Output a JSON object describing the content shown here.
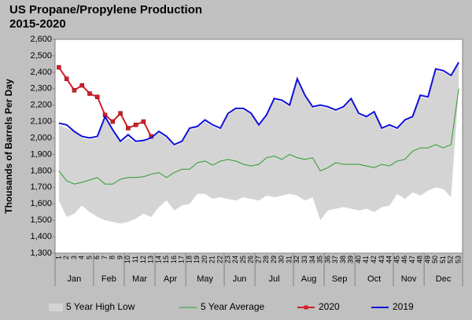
{
  "chart_data": {
    "type": "line",
    "title": "US Propane/Propylene Production",
    "subtitle": "2015-2020",
    "y_label": "Thousands of Barrels Per Day",
    "categories": [
      1,
      2,
      3,
      4,
      5,
      6,
      7,
      8,
      9,
      10,
      11,
      12,
      13,
      14,
      15,
      16,
      17,
      18,
      19,
      20,
      21,
      22,
      23,
      24,
      25,
      26,
      27,
      28,
      29,
      30,
      31,
      32,
      33,
      34,
      35,
      36,
      37,
      38,
      39,
      40,
      41,
      42,
      43,
      44,
      45,
      46,
      47,
      48,
      49,
      50,
      51,
      52,
      53
    ],
    "months": [
      {
        "label": "Jan",
        "start_week": 1
      },
      {
        "label": "Feb",
        "start_week": 6
      },
      {
        "label": "Mar",
        "start_week": 10
      },
      {
        "label": "Apr",
        "start_week": 14
      },
      {
        "label": "May",
        "start_week": 18
      },
      {
        "label": "Jun",
        "start_week": 23
      },
      {
        "label": "Jul",
        "start_week": 27
      },
      {
        "label": "Aug",
        "start_week": 32
      },
      {
        "label": "Sep",
        "start_week": 36
      },
      {
        "label": "Oct",
        "start_week": 40
      },
      {
        "label": "Nov",
        "start_week": 45
      },
      {
        "label": "Dec",
        "start_week": 49
      }
    ],
    "ylim": [
      1300,
      2600
    ],
    "yticks": [
      {
        "value": 1300,
        "label": "1,300"
      },
      {
        "value": 1400,
        "label": "1,400"
      },
      {
        "value": 1500,
        "label": "1,500"
      },
      {
        "value": 1600,
        "label": "1,600"
      },
      {
        "value": 1700,
        "label": "1,700"
      },
      {
        "value": 1800,
        "label": "1,800"
      },
      {
        "value": 1900,
        "label": "1,900"
      },
      {
        "value": 2000,
        "label": "2,000"
      },
      {
        "value": 2100,
        "label": "2,100"
      },
      {
        "value": 2200,
        "label": "2,200"
      },
      {
        "value": 2300,
        "label": "2,300"
      },
      {
        "value": 2400,
        "label": "2,400"
      },
      {
        "value": 2500,
        "label": "2,500"
      },
      {
        "value": 2600,
        "label": "2,600"
      }
    ],
    "grid": false,
    "legend": "bottom",
    "band": {
      "name": "5 Year High Low",
      "color": "#d4d4d4",
      "high": [
        2080,
        2060,
        2040,
        2000,
        1990,
        2000,
        2120,
        2040,
        1970,
        2000,
        1970,
        1980,
        1990,
        2030,
        2000,
        1950,
        1970,
        2050,
        2060,
        2100,
        2070,
        2050,
        2140,
        2170,
        2170,
        2140,
        2070,
        2130,
        2230,
        2220,
        2190,
        2350,
        2250,
        2180,
        2190,
        2180,
        2160,
        2180,
        2230,
        2140,
        2120,
        2150,
        2050,
        2070,
        2050,
        2100,
        2120,
        2250,
        2240,
        2410,
        2400,
        2370,
        2450
      ],
      "low": [
        1620,
        1520,
        1540,
        1590,
        1550,
        1520,
        1500,
        1490,
        1480,
        1490,
        1510,
        1540,
        1520,
        1580,
        1620,
        1560,
        1590,
        1600,
        1660,
        1660,
        1630,
        1640,
        1630,
        1620,
        1640,
        1630,
        1620,
        1650,
        1640,
        1650,
        1660,
        1650,
        1620,
        1640,
        1500,
        1560,
        1570,
        1580,
        1570,
        1560,
        1570,
        1550,
        1580,
        1590,
        1660,
        1630,
        1670,
        1650,
        1680,
        1700,
        1690,
        1640,
        2300
      ]
    },
    "series": [
      {
        "name": "5 Year Average",
        "color": "#2e9a2e",
        "width": 1,
        "marker": false,
        "values": [
          1800,
          1740,
          1720,
          1730,
          1745,
          1760,
          1720,
          1720,
          1750,
          1760,
          1760,
          1765,
          1780,
          1790,
          1760,
          1790,
          1810,
          1810,
          1850,
          1860,
          1835,
          1860,
          1870,
          1860,
          1840,
          1830,
          1840,
          1880,
          1890,
          1870,
          1900,
          1880,
          1870,
          1880,
          1800,
          1820,
          1850,
          1840,
          1840,
          1840,
          1830,
          1820,
          1840,
          1830,
          1860,
          1870,
          1920,
          1940,
          1940,
          1960,
          1940,
          1960,
          2300
        ]
      },
      {
        "name": "2020",
        "color": "#d0202a",
        "width": 2,
        "marker": true,
        "values": [
          2430,
          2360,
          2290,
          2320,
          2270,
          2250,
          2140,
          2100,
          2150,
          2060,
          2080,
          2100,
          2010,
          null,
          null,
          null,
          null,
          null,
          null,
          null,
          null,
          null,
          null,
          null,
          null,
          null,
          null,
          null,
          null,
          null,
          null,
          null,
          null,
          null,
          null,
          null,
          null,
          null,
          null,
          null,
          null,
          null,
          null,
          null,
          null,
          null,
          null,
          null,
          null,
          null,
          null,
          null,
          null
        ]
      },
      {
        "name": "2019",
        "color": "#1010d8",
        "width": 2,
        "marker": false,
        "values": [
          2090,
          2080,
          2040,
          2010,
          2000,
          2010,
          2130,
          2050,
          1980,
          2020,
          1980,
          1985,
          2000,
          2040,
          2010,
          1960,
          1980,
          2060,
          2070,
          2110,
          2080,
          2060,
          2150,
          2180,
          2180,
          2150,
          2080,
          2140,
          2240,
          2230,
          2200,
          2360,
          2260,
          2190,
          2200,
          2190,
          2170,
          2190,
          2240,
          2150,
          2130,
          2160,
          2060,
          2080,
          2060,
          2110,
          2130,
          2260,
          2250,
          2420,
          2410,
          2380,
          2460
        ]
      }
    ]
  }
}
